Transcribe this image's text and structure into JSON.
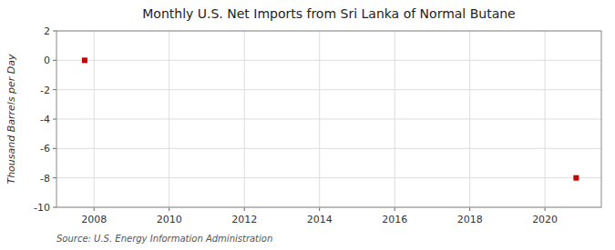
{
  "chart_data": {
    "type": "scatter",
    "title": "Monthly U.S. Net Imports from Sri Lanka of Normal Butane",
    "ylabel": "Thousand Barrels per Day",
    "source": "Source: U.S. Energy Information Administration",
    "x": [
      2007.75,
      2020.83
    ],
    "values": [
      0,
      -8
    ],
    "color": "#cc0000",
    "marker": "square",
    "xlim": [
      2007.0,
      2021.5
    ],
    "ylim": [
      -10,
      2
    ],
    "xticks": [
      2008,
      2010,
      2012,
      2014,
      2016,
      2018,
      2020
    ],
    "yticks": [
      -10,
      -8,
      -6,
      -4,
      -2,
      0,
      2
    ],
    "grid": true
  }
}
